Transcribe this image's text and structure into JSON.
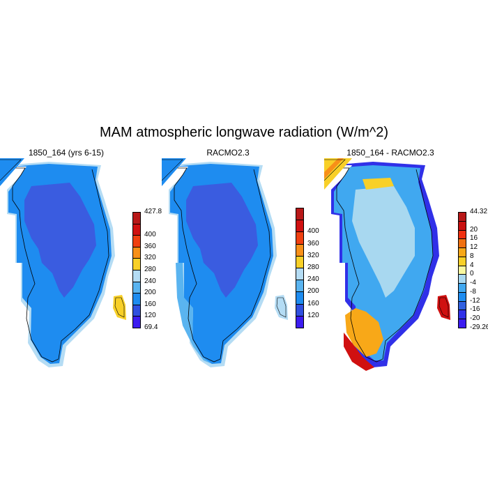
{
  "title": "MAM atmospheric longwave radiation (W/m^2)",
  "panels": [
    {
      "title": "1850_164 (yrs 6-15)",
      "colorbar": {
        "colors": [
          "#3c1cf0",
          "#3050e0",
          "#1e8cf0",
          "#5ab4f0",
          "#b4dcf4",
          "#f8d028",
          "#f89018",
          "#f04010",
          "#d01010",
          "#b81818"
        ],
        "labels": [
          "69.4",
          "120",
          "160",
          "200",
          "240",
          "280",
          "320",
          "360",
          "400",
          "427.8"
        ]
      }
    },
    {
      "title": "RACMO2.3",
      "colorbar": {
        "colors": [
          "#3c1cf0",
          "#3050e0",
          "#1e8cf0",
          "#5ab4f0",
          "#b4dcf4",
          "#f8d028",
          "#f89018",
          "#f04010",
          "#d01010",
          "#b81818"
        ],
        "labels": [
          "120",
          "160",
          "200",
          "240",
          "280",
          "320",
          "360",
          "400"
        ]
      }
    },
    {
      "title": "1850_164 - RACMO2.3",
      "colorbar": {
        "colors": [
          "#3c1cf0",
          "#3030e8",
          "#3060e0",
          "#1e8cf0",
          "#40a8f0",
          "#a8d8f0",
          "#f8f8a0",
          "#f8d028",
          "#f8a818",
          "#f07010",
          "#f03010",
          "#c81010",
          "#b81818"
        ],
        "labels": [
          "-29.26",
          "-20",
          "-16",
          "-12",
          "-8",
          "-4",
          "0",
          "4",
          "8",
          "12",
          "16",
          "20",
          "44.32"
        ]
      }
    }
  ]
}
